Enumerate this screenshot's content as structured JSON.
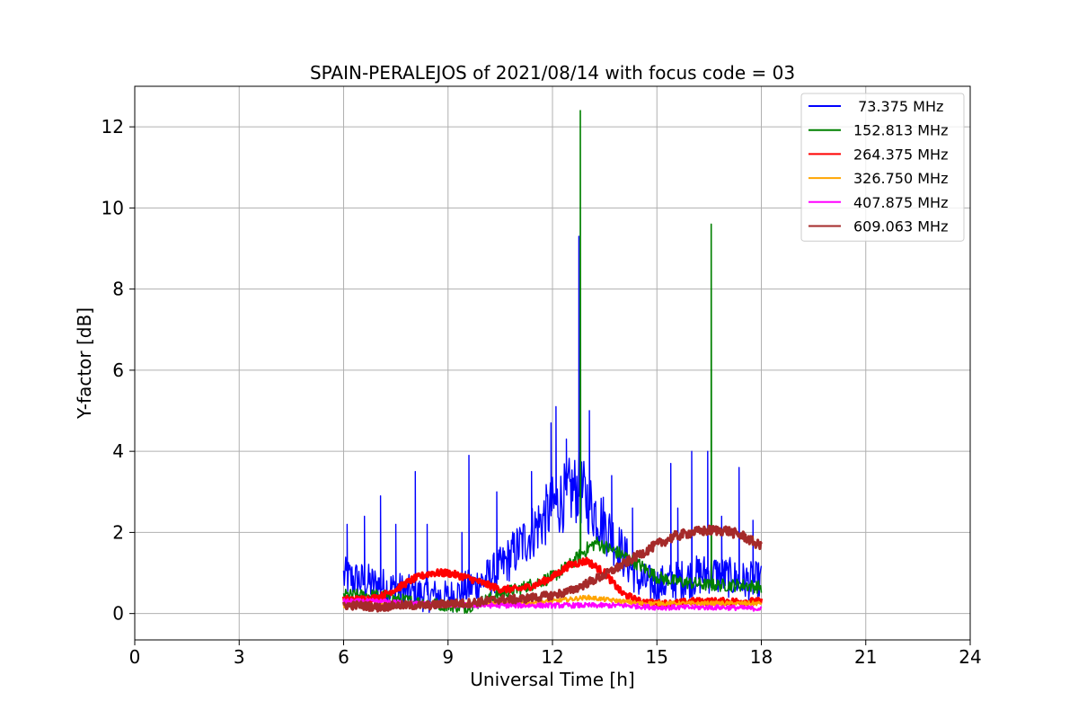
{
  "chart_data": {
    "type": "line",
    "title": "SPAIN-PERALEJOS of 2021/08/14 with focus code = 03",
    "xlabel": "Universal Time [h]",
    "ylabel": "Y-factor [dB]",
    "xlim": [
      0,
      24
    ],
    "ylim": [
      -0.65,
      13.0
    ],
    "xticks": [
      0,
      3,
      6,
      9,
      12,
      15,
      18,
      21,
      24
    ],
    "yticks": [
      0,
      2,
      4,
      6,
      8,
      10,
      12
    ],
    "grid": true,
    "legend_position": "top-right",
    "series": [
      {
        "name": " 73.375 MHz",
        "color": "#0000ff",
        "x": [
          6.0,
          6.5,
          7.0,
          7.5,
          8.0,
          8.5,
          9.0,
          9.5,
          10.0,
          10.5,
          11.0,
          11.5,
          12.0,
          12.5,
          12.75,
          13.0,
          13.5,
          14.0,
          14.5,
          15.0,
          15.5,
          16.0,
          16.5,
          17.0,
          17.5,
          18.0
        ],
        "y": [
          0.9,
          0.8,
          0.7,
          0.6,
          0.5,
          0.45,
          0.4,
          0.6,
          0.8,
          1.1,
          1.6,
          2.1,
          2.6,
          3.0,
          3.1,
          2.8,
          2.2,
          1.5,
          0.8,
          0.7,
          0.8,
          0.9,
          1.0,
          0.9,
          0.8,
          0.8
        ],
        "spikes": [
          [
            6.1,
            2.2
          ],
          [
            6.6,
            2.4
          ],
          [
            7.05,
            2.9
          ],
          [
            7.5,
            2.2
          ],
          [
            8.05,
            3.5
          ],
          [
            8.4,
            2.2
          ],
          [
            9.4,
            2.0
          ],
          [
            9.6,
            3.9
          ],
          [
            10.4,
            3.0
          ],
          [
            11.4,
            3.5
          ],
          [
            11.95,
            4.7
          ],
          [
            12.1,
            5.1
          ],
          [
            12.4,
            4.3
          ],
          [
            12.75,
            9.3
          ],
          [
            13.05,
            5.0
          ],
          [
            13.7,
            3.4
          ],
          [
            14.3,
            2.6
          ],
          [
            15.4,
            3.7
          ],
          [
            15.6,
            2.6
          ],
          [
            16.0,
            4.0
          ],
          [
            16.45,
            4.0
          ],
          [
            16.85,
            2.4
          ],
          [
            17.35,
            3.6
          ],
          [
            17.75,
            2.3
          ]
        ]
      },
      {
        "name": "152.813 MHz",
        "color": "#008000",
        "x": [
          6.0,
          6.5,
          7.0,
          7.5,
          8.0,
          8.5,
          9.0,
          9.5,
          10.0,
          10.5,
          11.0,
          11.5,
          12.0,
          12.5,
          12.75,
          13.0,
          13.25,
          13.5,
          14.0,
          14.5,
          15.0,
          15.5,
          16.0,
          16.5,
          17.0,
          17.5,
          18.0
        ],
        "y": [
          0.45,
          0.45,
          0.45,
          0.35,
          0.3,
          0.25,
          0.2,
          0.15,
          0.3,
          0.5,
          0.6,
          0.75,
          0.9,
          1.2,
          1.4,
          1.6,
          1.75,
          1.65,
          1.45,
          1.2,
          0.9,
          0.8,
          0.75,
          0.7,
          0.7,
          0.7,
          0.65
        ],
        "spikes": [
          [
            12.8,
            12.4
          ],
          [
            16.55,
            9.6
          ]
        ]
      },
      {
        "name": "264.375 MHz",
        "color": "#ff0000",
        "x": [
          6.0,
          6.5,
          7.0,
          7.5,
          8.0,
          8.5,
          9.0,
          9.5,
          10.0,
          10.5,
          11.0,
          11.5,
          12.0,
          12.5,
          13.0,
          13.5,
          14.0,
          14.5,
          15.0,
          15.5,
          16.0,
          16.5,
          17.0,
          17.5,
          18.0
        ],
        "y": [
          0.35,
          0.35,
          0.4,
          0.6,
          0.85,
          1.0,
          1.0,
          0.9,
          0.75,
          0.6,
          0.6,
          0.7,
          0.9,
          1.2,
          1.3,
          1.0,
          0.5,
          0.3,
          0.25,
          0.25,
          0.3,
          0.3,
          0.3,
          0.3,
          0.3
        ],
        "spikes": []
      },
      {
        "name": "326.750 MHz",
        "color": "#ffa500",
        "x": [
          6.0,
          7.0,
          8.0,
          9.0,
          10.0,
          11.0,
          12.0,
          12.5,
          13.0,
          13.5,
          14.0,
          14.5,
          15.0,
          15.5,
          16.0,
          17.0,
          18.0
        ],
        "y": [
          0.2,
          0.2,
          0.2,
          0.2,
          0.25,
          0.25,
          0.3,
          0.35,
          0.4,
          0.35,
          0.3,
          0.25,
          0.25,
          0.25,
          0.25,
          0.25,
          0.25
        ],
        "spikes": []
      },
      {
        "name": "407.875 MHz",
        "color": "#ff00ff",
        "x": [
          6.0,
          7.0,
          8.0,
          9.0,
          10.0,
          11.0,
          12.0,
          13.0,
          14.0,
          15.0,
          16.0,
          17.0,
          18.0
        ],
        "y": [
          0.3,
          0.3,
          0.25,
          0.2,
          0.2,
          0.2,
          0.2,
          0.2,
          0.2,
          0.15,
          0.15,
          0.15,
          0.12
        ],
        "spikes": []
      },
      {
        "name": "609.063 MHz",
        "color": "#a52a2a",
        "x": [
          6.0,
          6.5,
          7.0,
          7.5,
          8.0,
          8.5,
          9.0,
          9.5,
          10.0,
          10.5,
          11.0,
          11.5,
          12.0,
          12.5,
          13.0,
          13.5,
          14.0,
          14.5,
          15.0,
          15.5,
          16.0,
          16.5,
          17.0,
          17.5,
          18.0
        ],
        "y": [
          0.2,
          0.2,
          0.15,
          0.2,
          0.2,
          0.2,
          0.25,
          0.25,
          0.3,
          0.35,
          0.35,
          0.4,
          0.45,
          0.55,
          0.75,
          0.95,
          1.2,
          1.45,
          1.7,
          1.9,
          2.0,
          2.05,
          2.05,
          1.9,
          1.65
        ],
        "spikes": []
      }
    ]
  }
}
